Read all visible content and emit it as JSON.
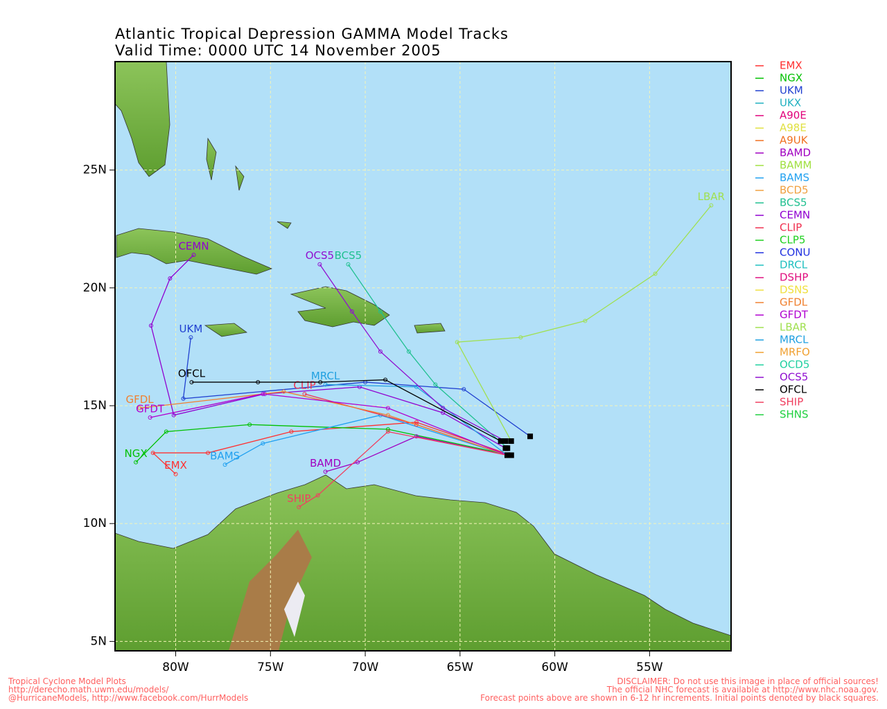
{
  "chart_data": {
    "type": "track-map",
    "title": "Atlantic Tropical Depression GAMMA Model Tracks",
    "subtitle": "Valid Time: 0000 UTC 14 November 2005",
    "xlim": [
      -83.2,
      -50.7
    ],
    "ylim": [
      4.6,
      29.6
    ],
    "grid": true,
    "xticks": [
      {
        "value": -80,
        "label": "80W"
      },
      {
        "value": -75,
        "label": "75W"
      },
      {
        "value": -70,
        "label": "70W"
      },
      {
        "value": -65,
        "label": "65W"
      },
      {
        "value": -60,
        "label": "60W"
      },
      {
        "value": -55,
        "label": "55W"
      }
    ],
    "yticks": [
      {
        "value": 5,
        "label": "5N"
      },
      {
        "value": 10,
        "label": "10N"
      },
      {
        "value": 15,
        "label": "15N"
      },
      {
        "value": 20,
        "label": "20N"
      },
      {
        "value": 25,
        "label": "25N"
      }
    ],
    "series": [
      {
        "name": "EMX",
        "color": "#ff3030",
        "lon": [
          -62.3,
          -67.3,
          -73.9,
          -78.3,
          -81.2,
          -80.0
        ],
        "lat": [
          12.9,
          14.3,
          13.9,
          13.0,
          13.0,
          12.1
        ]
      },
      {
        "name": "NGX",
        "color": "#00c000",
        "lon": [
          -62.3,
          -68.8,
          -76.1,
          -80.5,
          -82.1
        ],
        "lat": [
          12.9,
          14.0,
          14.2,
          13.9,
          12.6
        ]
      },
      {
        "name": "UKM",
        "color": "#2040d0",
        "lon": [
          -61.3,
          -64.8,
          -70.0,
          -79.6,
          -79.2
        ],
        "lat": [
          13.7,
          15.7,
          16.0,
          15.3,
          17.9
        ]
      },
      {
        "name": "UKX",
        "color": "#20b0c0"
      },
      {
        "name": "A90E",
        "color": "#e0007a"
      },
      {
        "name": "A98E",
        "color": "#e0e040"
      },
      {
        "name": "A9UK",
        "color": "#f07020"
      },
      {
        "name": "BAMD",
        "color": "#a000c0",
        "lon": [
          -62.5,
          -67.3,
          -70.4,
          -72.1
        ],
        "lat": [
          12.9,
          13.7,
          12.6,
          12.2
        ]
      },
      {
        "name": "BAMM",
        "color": "#a0e040"
      },
      {
        "name": "BAMS",
        "color": "#20a0f0",
        "lon": [
          -62.5,
          -69.2,
          -75.4,
          -77.4
        ],
        "lat": [
          12.9,
          14.6,
          13.4,
          12.5
        ]
      },
      {
        "name": "BCD5",
        "color": "#f0a040"
      },
      {
        "name": "BCS5",
        "color": "#20c090",
        "lon": [
          -62.5,
          -66.3,
          -67.7,
          -69.2,
          -70.9
        ],
        "lat": [
          13.2,
          15.9,
          17.3,
          19.0,
          21.0
        ]
      },
      {
        "name": "CEMN",
        "color": "#9000d0",
        "lon": [
          -62.6,
          -65.9,
          -70.3,
          -75.3,
          -80.1,
          -81.3,
          -80.3,
          -79.05
        ],
        "lat": [
          13.2,
          14.7,
          15.8,
          15.5,
          14.6,
          18.4,
          20.4,
          21.4
        ]
      },
      {
        "name": "CLIP",
        "color": "#f03050",
        "lon": [
          -62.5,
          -67.3,
          -73.2
        ],
        "lat": [
          12.9,
          14.2,
          15.5
        ]
      },
      {
        "name": "CLP5",
        "color": "#20d020"
      },
      {
        "name": "CONU",
        "color": "#2030e0"
      },
      {
        "name": "DRCL",
        "color": "#20c0c0"
      },
      {
        "name": "DSHP",
        "color": "#e01080"
      },
      {
        "name": "DSNS",
        "color": "#f0e040"
      },
      {
        "name": "GFDL",
        "color": "#f08030",
        "lon": [
          -62.5,
          -68.8,
          -74.3,
          -81.9
        ],
        "lat": [
          12.9,
          14.6,
          15.6,
          14.9
        ]
      },
      {
        "name": "GFDT",
        "color": "#b000d0",
        "lon": [
          -62.5,
          -68.8,
          -75.4,
          -81.35
        ],
        "lat": [
          12.9,
          14.9,
          15.5,
          14.5
        ]
      },
      {
        "name": "LBAR",
        "color": "#a0e050",
        "lon": [
          -62.3,
          -65.15,
          -61.8,
          -58.4,
          -54.7,
          -51.75
        ],
        "lat": [
          13.5,
          17.7,
          17.9,
          18.6,
          20.6,
          23.5
        ]
      },
      {
        "name": "MRCL",
        "color": "#20a0e0",
        "lon": [
          -62.5,
          -67.3,
          -72.1
        ],
        "lat": [
          12.9,
          15.8,
          15.9
        ]
      },
      {
        "name": "MRFO",
        "color": "#f0a030"
      },
      {
        "name": "OCD5",
        "color": "#20d0a0"
      },
      {
        "name": "OCS5",
        "color": "#9010d0",
        "lon": [
          -62.6,
          -65.9,
          -69.2,
          -70.7,
          -72.4
        ],
        "lat": [
          13.5,
          14.9,
          17.3,
          19.0,
          21.0
        ]
      },
      {
        "name": "OFCL",
        "color": "#000000",
        "lon": [
          -62.85,
          -68.94,
          -72.37,
          -75.66,
          -79.16
        ],
        "lat": [
          13.5,
          16.1,
          16.0,
          16.0,
          16.0
        ]
      },
      {
        "name": "SHIP",
        "color": "#f04060",
        "lon": [
          -62.5,
          -68.8,
          -72.5,
          -73.5
        ],
        "lat": [
          12.9,
          13.9,
          11.2,
          10.7
        ]
      },
      {
        "name": "SHNS",
        "color": "#20d040"
      }
    ],
    "footer_left": [
      "Tropical Cyclone Model Plots",
      "http://derecho.math.uwm.edu/models/",
      "@HurricaneModels, http://www.facebook.com/HurrModels"
    ],
    "footer_right": [
      "DISCLAIMER: Do not use this image in place of official sources!",
      "The official NHC forecast is available at http://www.nhc.noaa.gov.",
      "Forecast points above are shown in 6-12 hr increments. Initial points denoted by black squares."
    ]
  }
}
